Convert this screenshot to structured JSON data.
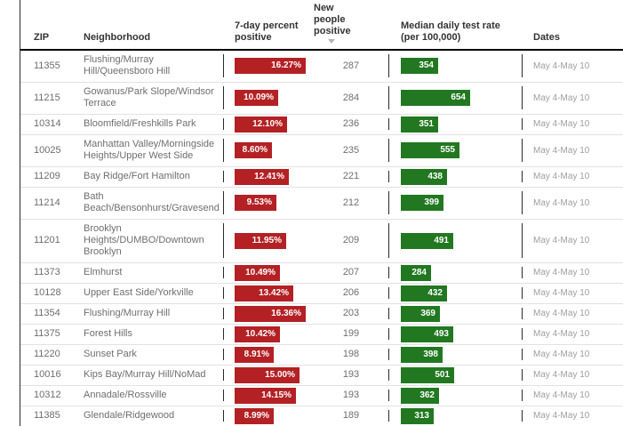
{
  "chart_data": {
    "type": "table",
    "columns": [
      "ZIP",
      "Neighborhood",
      "7-day percent positive",
      "New people positive",
      "Median daily test rate (per 100,000)",
      "Dates"
    ],
    "sort": {
      "column": "New people positive",
      "direction": "descending"
    },
    "axis": {
      "pct_bar_max": 16.36,
      "rate_bar_max": 654
    },
    "rows": [
      {
        "zip": "11355",
        "neighborhood": "Flushing/Murray Hill/Queensboro Hill",
        "pct_positive": "16.27%",
        "pct_value": 16.27,
        "new_positive": 287,
        "test_rate": 354,
        "dates": "May 4-May 10"
      },
      {
        "zip": "11215",
        "neighborhood": "Gowanus/Park Slope/Windsor Terrace",
        "pct_positive": "10.09%",
        "pct_value": 10.09,
        "new_positive": 284,
        "test_rate": 654,
        "dates": "May 4-May 10"
      },
      {
        "zip": "10314",
        "neighborhood": "Bloomfield/Freshkills Park",
        "pct_positive": "12.10%",
        "pct_value": 12.1,
        "new_positive": 236,
        "test_rate": 351,
        "dates": "May 4-May 10"
      },
      {
        "zip": "10025",
        "neighborhood": "Manhattan Valley/Morningside Heights/Upper West Side",
        "pct_positive": "8.60%",
        "pct_value": 8.6,
        "new_positive": 235,
        "test_rate": 555,
        "dates": "May 4-May 10"
      },
      {
        "zip": "11209",
        "neighborhood": "Bay Ridge/Fort Hamilton",
        "pct_positive": "12.41%",
        "pct_value": 12.41,
        "new_positive": 221,
        "test_rate": 438,
        "dates": "May 4-May 10"
      },
      {
        "zip": "11214",
        "neighborhood": "Bath Beach/Bensonhurst/Gravesend",
        "pct_positive": "9.53%",
        "pct_value": 9.53,
        "new_positive": 212,
        "test_rate": 399,
        "dates": "May 4-May 10"
      },
      {
        "zip": "11201",
        "neighborhood": "Brooklyn Heights/DUMBO/Downtown Brooklyn",
        "pct_positive": "11.95%",
        "pct_value": 11.95,
        "new_positive": 209,
        "test_rate": 491,
        "dates": "May 4-May 10"
      },
      {
        "zip": "11373",
        "neighborhood": "Elmhurst",
        "pct_positive": "10.49%",
        "pct_value": 10.49,
        "new_positive": 207,
        "test_rate": 284,
        "dates": "May 4-May 10"
      },
      {
        "zip": "10128",
        "neighborhood": "Upper East Side/Yorkville",
        "pct_positive": "13.42%",
        "pct_value": 13.42,
        "new_positive": 206,
        "test_rate": 432,
        "dates": "May 4-May 10"
      },
      {
        "zip": "11354",
        "neighborhood": "Flushing/Murray Hill",
        "pct_positive": "16.36%",
        "pct_value": 16.36,
        "new_positive": 203,
        "test_rate": 369,
        "dates": "May 4-May 10"
      },
      {
        "zip": "11375",
        "neighborhood": "Forest Hills",
        "pct_positive": "10.42%",
        "pct_value": 10.42,
        "new_positive": 199,
        "test_rate": 493,
        "dates": "May 4-May 10"
      },
      {
        "zip": "11220",
        "neighborhood": "Sunset Park",
        "pct_positive": "8.91%",
        "pct_value": 8.91,
        "new_positive": 198,
        "test_rate": 398,
        "dates": "May 4-May 10"
      },
      {
        "zip": "10016",
        "neighborhood": "Kips Bay/Murray Hill/NoMad",
        "pct_positive": "15.00%",
        "pct_value": 15.0,
        "new_positive": 193,
        "test_rate": 501,
        "dates": "May 4-May 10"
      },
      {
        "zip": "10312",
        "neighborhood": "Annadale/Rossville",
        "pct_positive": "14.15%",
        "pct_value": 14.15,
        "new_positive": 193,
        "test_rate": 362,
        "dates": "May 4-May 10"
      },
      {
        "zip": "11385",
        "neighborhood": "Glendale/Ridgewood",
        "pct_positive": "8.99%",
        "pct_value": 8.99,
        "new_positive": 189,
        "test_rate": 313,
        "dates": "May 4-May 10"
      }
    ]
  },
  "colors": {
    "bar_red": "#b32124",
    "bar_green": "#217821"
  }
}
